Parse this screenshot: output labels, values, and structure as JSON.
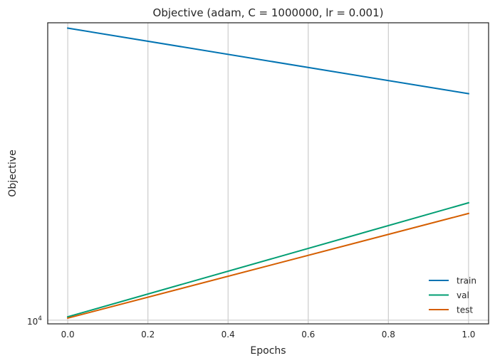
{
  "chart_data": {
    "type": "line",
    "title": "Objective (adam, C = 1000000, lr = 0.001)",
    "xlabel": "Epochs",
    "ylabel": "Objective",
    "x": [
      0.0,
      1.0
    ],
    "xlim": [
      -0.05,
      1.05
    ],
    "ylim": [
      9730,
      90000
    ],
    "yscale": "log",
    "x_ticks": [
      {
        "value": 0.0,
        "label": "0.0"
      },
      {
        "value": 0.2,
        "label": "0.2"
      },
      {
        "value": 0.4,
        "label": "0.4"
      },
      {
        "value": 0.6,
        "label": "0.6"
      },
      {
        "value": 0.8,
        "label": "0.8"
      },
      {
        "value": 1.0,
        "label": "1.0"
      }
    ],
    "y_ticks": [
      {
        "value": 10000,
        "base": "10",
        "exp": "4"
      }
    ],
    "grid": true,
    "legend_position": "lower-right",
    "series": [
      {
        "name": "train",
        "color": "#0173b2",
        "values": [
          86500,
          53300
        ]
      },
      {
        "name": "val",
        "color": "#029e73",
        "values": [
          10250,
          23800
        ]
      },
      {
        "name": "test",
        "color": "#d55e00",
        "values": [
          10150,
          22000
        ]
      }
    ]
  }
}
